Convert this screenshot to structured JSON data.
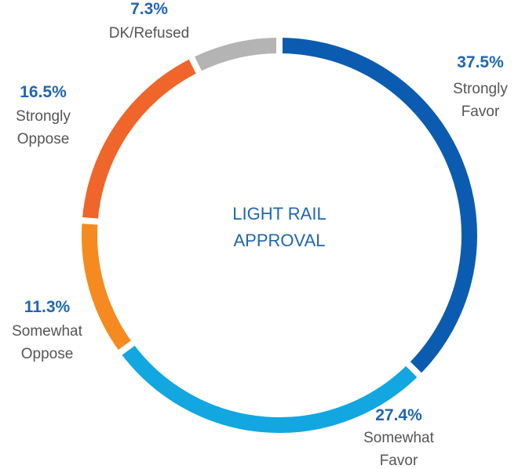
{
  "chart_data": {
    "type": "donut",
    "title": "LIGHT RAIL APPROVAL",
    "categories": [
      "Strongly Favor",
      "Somewhat Favor",
      "Somewhat Oppose",
      "Strongly Oppose",
      "DK/Refused"
    ],
    "values": [
      37.5,
      27.4,
      11.3,
      16.5,
      7.3
    ],
    "value_labels": [
      "37.5%",
      "27.4%",
      "11.3%",
      "16.5%",
      "7.3%"
    ],
    "colors": [
      "#0b5cb1",
      "#12a7e1",
      "#f58b20",
      "#ef652a",
      "#b4b4b5"
    ]
  }
}
